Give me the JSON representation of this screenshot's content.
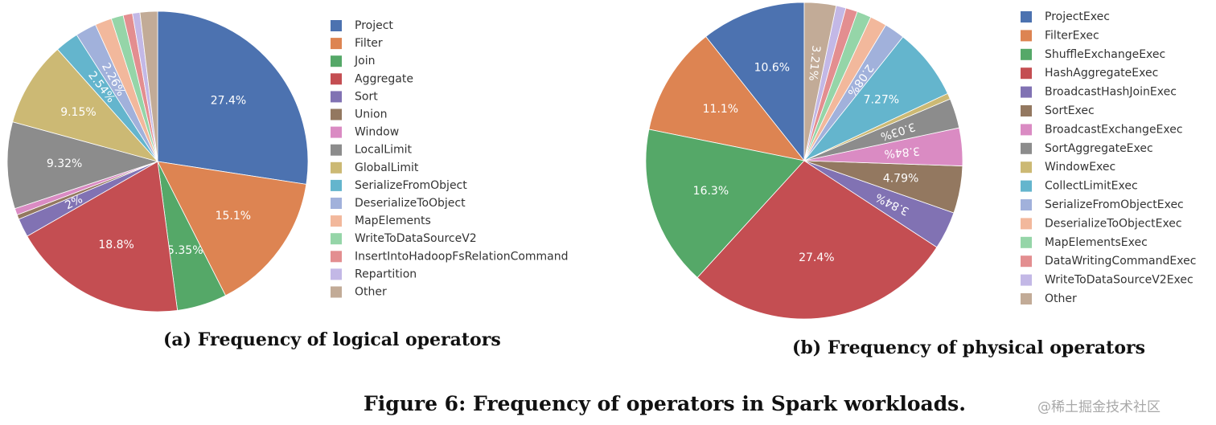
{
  "figure_caption": "Figure 6: Frequency of operators in Spark workloads.",
  "watermark": "@稀土掘金技术社区",
  "chart_data": [
    {
      "type": "pie",
      "caption": "(a) Frequency of logical operators",
      "labels": [
        "Project",
        "Filter",
        "Join",
        "Aggregate",
        "Sort",
        "Union",
        "Window",
        "LocalLimit",
        "GlobalLimit",
        "SerializeFromObject",
        "DeserializeToObject",
        "MapElements",
        "WriteToDataSourceV2",
        "InsertIntoHadoopFsRelationCommand",
        "Repartition",
        "Other"
      ],
      "values": [
        27.4,
        15.1,
        5.35,
        18.8,
        2.0,
        0.5,
        0.7,
        9.32,
        9.15,
        2.54,
        2.26,
        1.8,
        1.3,
        1.0,
        0.8,
        1.88
      ],
      "slice_labels": [
        "27.4%",
        "15.1%",
        "5.35%",
        "18.8%",
        "2%",
        "",
        "",
        "9.32%",
        "9.15%",
        "2.54%",
        "2.26%",
        "",
        "",
        "",
        "",
        ""
      ],
      "colors": [
        "#4c72b0",
        "#dd8452",
        "#55a868",
        "#c44e52",
        "#8172b3",
        "#937860",
        "#da8bc3",
        "#8c8c8c",
        "#ccb974",
        "#64b5cd",
        "#a1b1db",
        "#f2b89c",
        "#95d5a8",
        "#e38e90",
        "#c3b8e6",
        "#c2ab97"
      ],
      "legend_position": "right",
      "direction": "clockwise",
      "start": "12 o'clock"
    },
    {
      "type": "pie",
      "caption": "(b) Frequency of physical operators",
      "labels": [
        "ProjectExec",
        "FilterExec",
        "ShuffleExchangeExec",
        "HashAggregateExec",
        "BroadcastHashJoinExec",
        "SortExec",
        "BroadcastExchangeExec",
        "SortAggregateExec",
        "WindowExec",
        "CollectLimitExec",
        "SerializeFromObjectExec",
        "DeserializeToObjectExec",
        "MapElementsExec",
        "DataWritingCommandExec",
        "WriteToDataSourceV2Exec",
        "Other"
      ],
      "values": [
        10.6,
        11.1,
        16.3,
        27.4,
        3.84,
        4.79,
        3.84,
        3.03,
        0.6,
        7.27,
        2.08,
        1.7,
        1.45,
        1.2,
        1.0,
        3.21
      ],
      "slice_labels": [
        "10.6%",
        "11.1%",
        "16.3%",
        "27.4%",
        "3.84%",
        "4.79%",
        "3.84%",
        "3.03%",
        "",
        "7.27%",
        "2.08%",
        "",
        "",
        "",
        "",
        "3.21%"
      ],
      "colors": [
        "#4c72b0",
        "#dd8452",
        "#55a868",
        "#c44e52",
        "#8172b3",
        "#937860",
        "#da8bc3",
        "#8c8c8c",
        "#ccb974",
        "#64b5cd",
        "#a1b1db",
        "#f2b89c",
        "#95d5a8",
        "#e38e90",
        "#c3b8e6",
        "#c2ab97"
      ],
      "legend_position": "right",
      "direction": "counterclockwise",
      "start": "12 o'clock"
    }
  ]
}
